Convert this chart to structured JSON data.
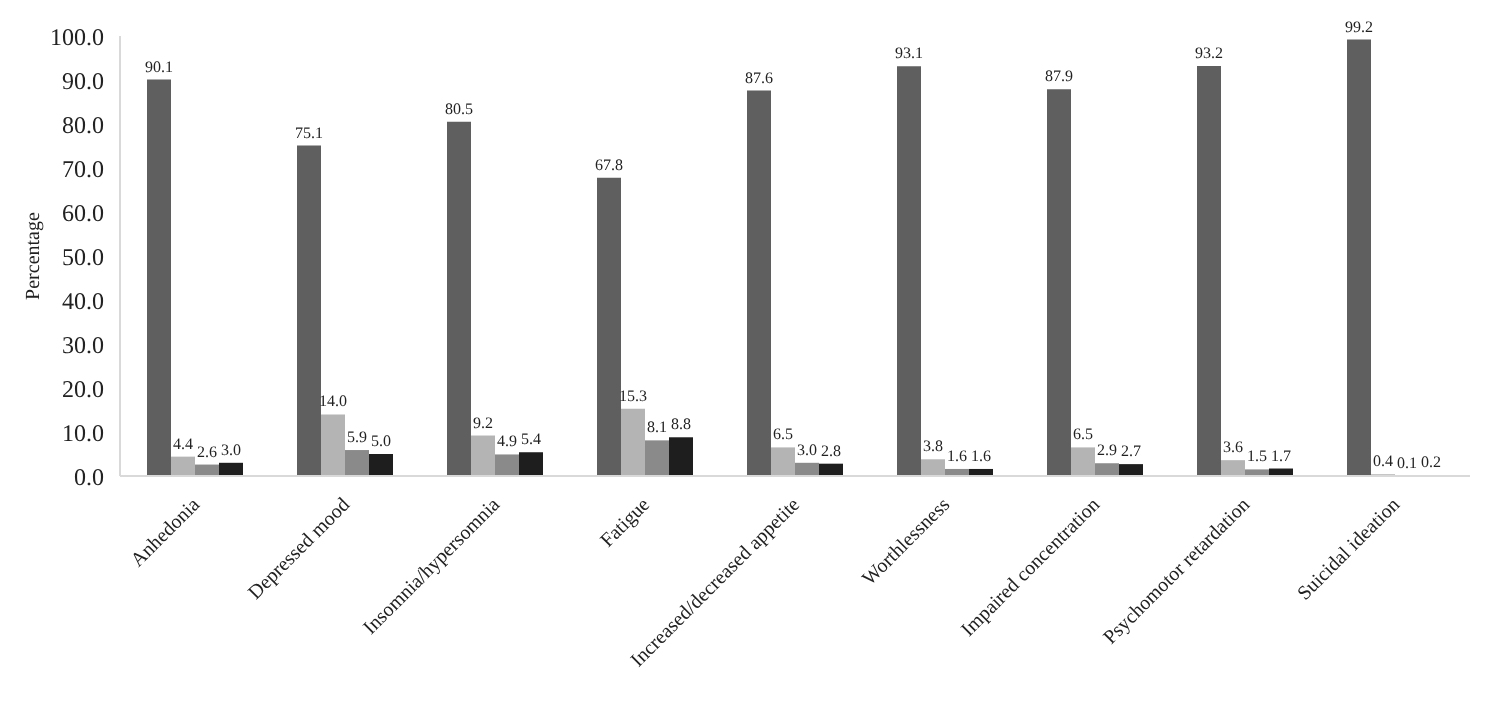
{
  "chart_data": {
    "type": "bar",
    "ylabel": "Percentage",
    "categories": [
      "Anhedonia",
      "Depressed mood",
      "Insomnia/hypersomnia",
      "Fatigue",
      "Increased/decreased appetite",
      "Worthlessness",
      "Impaired concentration",
      "Psychomotor retardation",
      "Suicidal ideation"
    ],
    "series": [
      {
        "color": "#5f5f5f",
        "values": [
          90.1,
          75.1,
          80.5,
          67.8,
          87.6,
          93.1,
          87.9,
          93.2,
          99.2
        ],
        "value_labels": [
          "90.1",
          "75.1",
          "80.5",
          "67.8",
          "87.6",
          "93.1",
          "87.9",
          "93.2",
          "99.2"
        ]
      },
      {
        "color": "#b4b4b4",
        "values": [
          4.4,
          14.0,
          9.2,
          15.3,
          6.5,
          3.8,
          6.5,
          3.6,
          0.4
        ],
        "value_labels": [
          "4.4",
          "14.0",
          "9.2",
          "15.3",
          "6.5",
          "3.8",
          "6.5",
          "3.6",
          "0.4"
        ]
      },
      {
        "color": "#8a8a8a",
        "values": [
          2.6,
          5.9,
          4.9,
          8.1,
          3.0,
          1.6,
          2.9,
          1.5,
          0.1
        ],
        "value_labels": [
          "2.6",
          "5.9",
          "4.9",
          "8.1",
          "3.0",
          "1.6",
          "2.9",
          "1.5",
          "0.1"
        ]
      },
      {
        "color": "#1e1e1e",
        "values": [
          3.0,
          5.0,
          5.4,
          8.8,
          2.8,
          1.6,
          2.7,
          1.7,
          0.2
        ],
        "value_labels": [
          "3.0",
          "5.0",
          "5.4",
          "8.8",
          "2.8",
          "1.6",
          "2.7",
          "1.7",
          "0.2"
        ]
      }
    ],
    "ylim": [
      0,
      100
    ],
    "yticks": [
      {
        "value": 0,
        "label": "0.0"
      },
      {
        "value": 10,
        "label": "10.0"
      },
      {
        "value": 20,
        "label": "20.0"
      },
      {
        "value": 30,
        "label": "30.0"
      },
      {
        "value": 40,
        "label": "40.0"
      },
      {
        "value": 50,
        "label": "50.0"
      },
      {
        "value": 60,
        "label": "60.0"
      },
      {
        "value": 70,
        "label": "70.0"
      },
      {
        "value": 80,
        "label": "80.0"
      },
      {
        "value": 90,
        "label": "90.0"
      },
      {
        "value": 100,
        "label": "100.0"
      }
    ],
    "grid": false,
    "legend": false
  }
}
